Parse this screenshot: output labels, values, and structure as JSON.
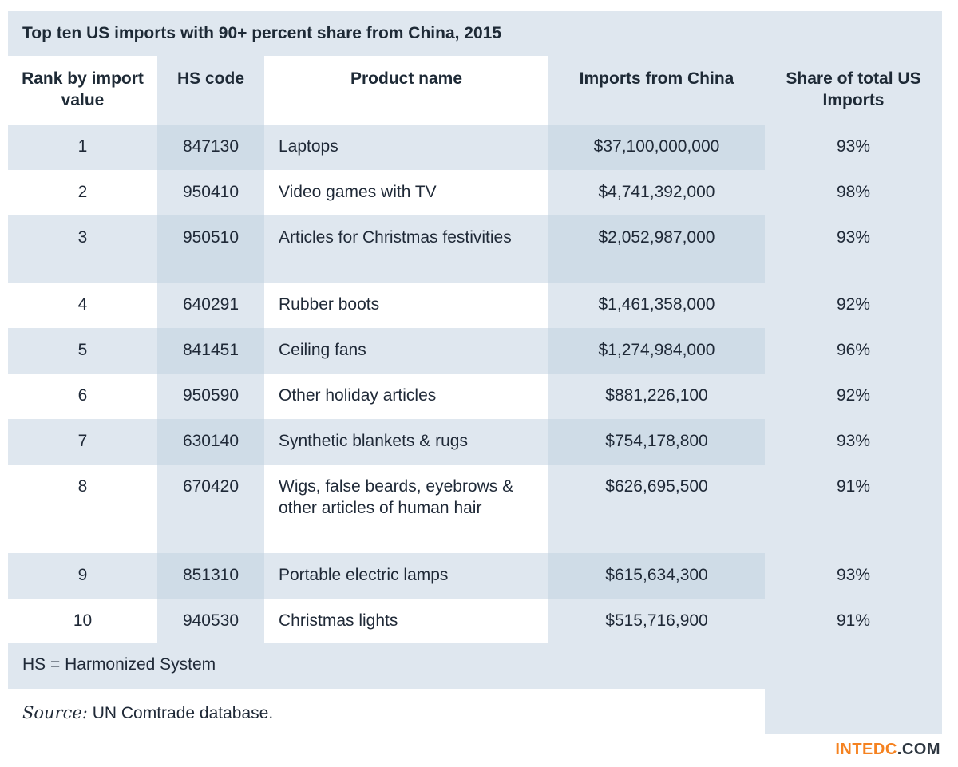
{
  "title": "Top ten US imports with 90+ percent share from China, 2015",
  "columns": {
    "rank": "Rank by import value",
    "hs": "HS code",
    "name": "Product name",
    "imports": "Imports from China",
    "share": "Share of total US Imports"
  },
  "rows": [
    {
      "rank": "1",
      "hs": "847130",
      "name": "Laptops",
      "imports": "$37,100,000,000",
      "share": "93%"
    },
    {
      "rank": "2",
      "hs": "950410",
      "name": "Video games with TV",
      "imports": "$4,741,392,000",
      "share": "98%"
    },
    {
      "rank": "3",
      "hs": "950510",
      "name": "Articles for Christmas festivities",
      "imports": "$2,052,987,000",
      "share": "93%"
    },
    {
      "rank": "4",
      "hs": "640291",
      "name": "Rubber boots",
      "imports": "$1,461,358,000",
      "share": "92%"
    },
    {
      "rank": "5",
      "hs": "841451",
      "name": "Ceiling fans",
      "imports": "$1,274,984,000",
      "share": "96%"
    },
    {
      "rank": "6",
      "hs": "950590",
      "name": "Other holiday articles",
      "imports": "$881,226,100",
      "share": "92%"
    },
    {
      "rank": "7",
      "hs": "630140",
      "name": "Synthetic blankets & rugs",
      "imports": "$754,178,800",
      "share": "93%"
    },
    {
      "rank": "8",
      "hs": "670420",
      "name": "Wigs, false beards, eyebrows & other articles of human hair",
      "imports": "$626,695,500",
      "share": "91%"
    },
    {
      "rank": "9",
      "hs": "851310",
      "name": "Portable electric lamps",
      "imports": "$615,634,300",
      "share": "93%"
    },
    {
      "rank": "10",
      "hs": "940530",
      "name": "Christmas lights",
      "imports": "$515,716,900",
      "share": "91%"
    }
  ],
  "footnote": "HS = Harmonized System",
  "source_label": "Source:",
  "source_text": "UN Comtrade database.",
  "logo": {
    "part1": "INTEDC",
    "part2": ".COM"
  },
  "colors": {
    "accent": "#f58220",
    "shade": "#dfe7ef",
    "shade_dark": "#cfdce7",
    "text": "#1f2937"
  }
}
